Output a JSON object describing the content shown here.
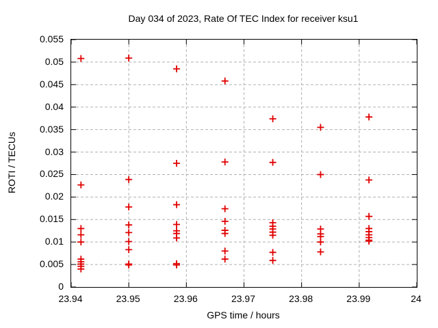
{
  "page": {
    "background": "#ffffff"
  },
  "chart_data": {
    "type": "scatter",
    "title": "Day 034 of 2023, Rate Of TEC Index for receiver ksu1",
    "xlabel": "GPS time / hours",
    "ylabel": "ROTI / TECUs",
    "xlim": [
      23.94,
      24
    ],
    "ylim": [
      0,
      0.055
    ],
    "x_ticks": [
      23.94,
      23.95,
      23.96,
      23.97,
      23.98,
      23.99,
      24
    ],
    "x_tick_labels": [
      "23.94",
      "23.95",
      "23.96",
      "23.97",
      "23.98",
      "23.99",
      "24"
    ],
    "y_ticks": [
      0,
      0.005,
      0.01,
      0.015,
      0.02,
      0.025,
      0.03,
      0.035,
      0.04,
      0.045,
      0.05,
      0.055
    ],
    "y_tick_labels": [
      "0",
      "0.005",
      "0.01",
      "0.015",
      "0.02",
      "0.025",
      "0.03",
      "0.035",
      "0.04",
      "0.045",
      "0.05",
      "0.055"
    ],
    "grid": true,
    "legend_position": "none",
    "marker_style": "plus",
    "colors": {
      "marker": "#e00000",
      "grid": "#b0b0b0",
      "axis": "#000000",
      "text": "#000000",
      "background": "#ffffff"
    },
    "series": [
      {
        "name": "ROTI",
        "points": [
          [
            23.9417,
            0.0508
          ],
          [
            23.9417,
            0.0227
          ],
          [
            23.9417,
            0.013
          ],
          [
            23.9417,
            0.0116
          ],
          [
            23.9417,
            0.01
          ],
          [
            23.9417,
            0.0062
          ],
          [
            23.9417,
            0.0056
          ],
          [
            23.9417,
            0.0051
          ],
          [
            23.9417,
            0.0046
          ],
          [
            23.9417,
            0.004
          ],
          [
            23.95,
            0.0509
          ],
          [
            23.95,
            0.0239
          ],
          [
            23.95,
            0.0178
          ],
          [
            23.95,
            0.0138
          ],
          [
            23.95,
            0.0121
          ],
          [
            23.95,
            0.0101
          ],
          [
            23.95,
            0.0083
          ],
          [
            23.95,
            0.0051
          ],
          [
            23.95,
            0.0049
          ],
          [
            23.9583,
            0.0485
          ],
          [
            23.9583,
            0.0275
          ],
          [
            23.9583,
            0.0183
          ],
          [
            23.9583,
            0.0139
          ],
          [
            23.9583,
            0.0125
          ],
          [
            23.9583,
            0.0119
          ],
          [
            23.9583,
            0.0109
          ],
          [
            23.9583,
            0.0052
          ],
          [
            23.9583,
            0.0049
          ],
          [
            23.9667,
            0.0458
          ],
          [
            23.9667,
            0.0278
          ],
          [
            23.9667,
            0.0174
          ],
          [
            23.9667,
            0.0146
          ],
          [
            23.9667,
            0.0126
          ],
          [
            23.9667,
            0.0119
          ],
          [
            23.9667,
            0.008
          ],
          [
            23.9667,
            0.0062
          ],
          [
            23.975,
            0.0374
          ],
          [
            23.975,
            0.0277
          ],
          [
            23.975,
            0.0143
          ],
          [
            23.975,
            0.0135
          ],
          [
            23.975,
            0.0129
          ],
          [
            23.975,
            0.0122
          ],
          [
            23.975,
            0.0115
          ],
          [
            23.975,
            0.0077
          ],
          [
            23.975,
            0.0059
          ],
          [
            23.9833,
            0.0355
          ],
          [
            23.9833,
            0.025
          ],
          [
            23.9833,
            0.0129
          ],
          [
            23.9833,
            0.0118
          ],
          [
            23.9833,
            0.0112
          ],
          [
            23.9833,
            0.01
          ],
          [
            23.9833,
            0.0078
          ],
          [
            23.9917,
            0.0378
          ],
          [
            23.9917,
            0.0238
          ],
          [
            23.9917,
            0.0157
          ],
          [
            23.9917,
            0.013
          ],
          [
            23.9917,
            0.0123
          ],
          [
            23.9917,
            0.0116
          ],
          [
            23.9917,
            0.011
          ],
          [
            23.9917,
            0.0104
          ],
          [
            23.9917,
            0.0102
          ]
        ]
      }
    ]
  }
}
